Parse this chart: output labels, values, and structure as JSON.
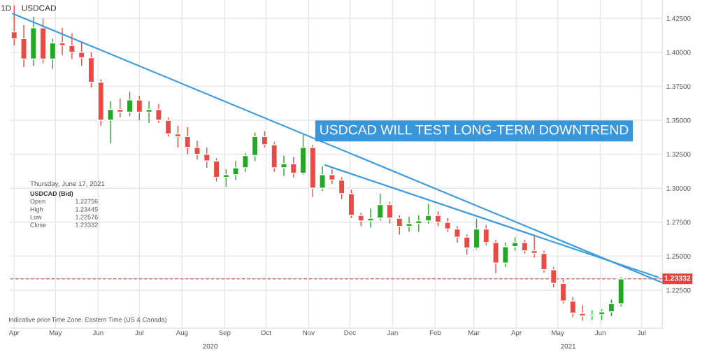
{
  "chart_data": {
    "type": "candlestick",
    "title": "USDCAD",
    "x": [
      "2020-04-01",
      "2020-04-08",
      "2020-04-15",
      "2020-04-22",
      "2020-04-29",
      "2020-05-06",
      "2020-05-13",
      "2020-05-20",
      "2020-05-27",
      "2020-06-03",
      "2020-06-10",
      "2020-06-17",
      "2020-06-24",
      "2020-07-01",
      "2020-07-08",
      "2020-07-15",
      "2020-07-22",
      "2020-07-29",
      "2020-08-05",
      "2020-08-12",
      "2020-08-19",
      "2020-08-26",
      "2020-09-02",
      "2020-09-09",
      "2020-09-16",
      "2020-09-23",
      "2020-09-30",
      "2020-10-07",
      "2020-10-14",
      "2020-10-21",
      "2020-10-28",
      "2020-11-04",
      "2020-11-11",
      "2020-11-18",
      "2020-11-25",
      "2020-12-02",
      "2020-12-09",
      "2020-12-16",
      "2020-12-23",
      "2020-12-30",
      "2021-01-06",
      "2021-01-13",
      "2021-01-20",
      "2021-01-27",
      "2021-02-03",
      "2021-02-10",
      "2021-02-17",
      "2021-02-24",
      "2021-03-03",
      "2021-03-10",
      "2021-03-17",
      "2021-03-24",
      "2021-03-31",
      "2021-04-07",
      "2021-04-14",
      "2021-04-21",
      "2021-04-28",
      "2021-05-05",
      "2021-05-12",
      "2021-05-19",
      "2021-05-26",
      "2021-06-02",
      "2021-06-09",
      "2021-06-16"
    ],
    "ohlc": [
      [
        1.415,
        1.4345,
        1.405,
        1.41
      ],
      [
        1.41,
        1.42,
        1.389,
        1.395
      ],
      [
        1.395,
        1.426,
        1.39,
        1.418
      ],
      [
        1.418,
        1.425,
        1.392,
        1.395
      ],
      [
        1.395,
        1.41,
        1.388,
        1.407
      ],
      [
        1.407,
        1.418,
        1.398,
        1.405
      ],
      [
        1.405,
        1.414,
        1.395,
        1.4
      ],
      [
        1.4,
        1.408,
        1.39,
        1.396
      ],
      [
        1.396,
        1.4,
        1.374,
        1.378
      ],
      [
        1.378,
        1.38,
        1.346,
        1.35
      ],
      [
        1.35,
        1.364,
        1.333,
        1.358
      ],
      [
        1.358,
        1.366,
        1.352,
        1.356
      ],
      [
        1.356,
        1.371,
        1.353,
        1.365
      ],
      [
        1.365,
        1.368,
        1.35,
        1.356
      ],
      [
        1.356,
        1.364,
        1.348,
        1.358
      ],
      [
        1.358,
        1.362,
        1.348,
        1.35
      ],
      [
        1.35,
        1.352,
        1.338,
        1.34
      ],
      [
        1.34,
        1.346,
        1.33,
        1.338
      ],
      [
        1.338,
        1.345,
        1.325,
        1.33
      ],
      [
        1.33,
        1.335,
        1.321,
        1.325
      ],
      [
        1.325,
        1.33,
        1.315,
        1.32
      ],
      [
        1.32,
        1.322,
        1.305,
        1.308
      ],
      [
        1.308,
        1.314,
        1.301,
        1.31
      ],
      [
        1.31,
        1.32,
        1.306,
        1.315
      ],
      [
        1.315,
        1.326,
        1.312,
        1.324
      ],
      [
        1.324,
        1.341,
        1.32,
        1.338
      ],
      [
        1.338,
        1.342,
        1.33,
        1.332
      ],
      [
        1.332,
        1.334,
        1.312,
        1.315
      ],
      [
        1.315,
        1.324,
        1.309,
        1.318
      ],
      [
        1.318,
        1.323,
        1.308,
        1.311
      ],
      [
        1.311,
        1.3395,
        1.31,
        1.33
      ],
      [
        1.33,
        1.332,
        1.2935,
        1.3
      ],
      [
        1.3,
        1.316,
        1.298,
        1.31
      ],
      [
        1.31,
        1.314,
        1.303,
        1.306
      ],
      [
        1.306,
        1.308,
        1.292,
        1.296
      ],
      [
        1.296,
        1.299,
        1.278,
        1.28
      ],
      [
        1.28,
        1.282,
        1.272,
        1.276
      ],
      [
        1.276,
        1.285,
        1.271,
        1.278
      ],
      [
        1.278,
        1.296,
        1.276,
        1.288
      ],
      [
        1.288,
        1.29,
        1.274,
        1.278
      ],
      [
        1.278,
        1.28,
        1.266,
        1.272
      ],
      [
        1.272,
        1.279,
        1.268,
        1.274
      ],
      [
        1.274,
        1.28,
        1.268,
        1.276
      ],
      [
        1.276,
        1.2885,
        1.274,
        1.28
      ],
      [
        1.28,
        1.283,
        1.272,
        1.275
      ],
      [
        1.275,
        1.278,
        1.268,
        1.27
      ],
      [
        1.27,
        1.272,
        1.26,
        1.264
      ],
      [
        1.264,
        1.266,
        1.251,
        1.256
      ],
      [
        1.256,
        1.2775,
        1.255,
        1.27
      ],
      [
        1.27,
        1.273,
        1.258,
        1.26
      ],
      [
        1.26,
        1.262,
        1.2375,
        1.245
      ],
      [
        1.245,
        1.26,
        1.242,
        1.257
      ],
      [
        1.257,
        1.264,
        1.254,
        1.26
      ],
      [
        1.26,
        1.262,
        1.252,
        1.254
      ],
      [
        1.254,
        1.266,
        1.249,
        1.252
      ],
      [
        1.252,
        1.254,
        1.238,
        1.24
      ],
      [
        1.24,
        1.242,
        1.227,
        1.23
      ],
      [
        1.23,
        1.233,
        1.215,
        1.217
      ],
      [
        1.217,
        1.22,
        1.205,
        1.208
      ],
      [
        1.208,
        1.214,
        1.2025,
        1.206
      ],
      [
        1.206,
        1.21,
        1.203,
        1.207
      ],
      [
        1.207,
        1.211,
        1.203,
        1.209
      ],
      [
        1.209,
        1.218,
        1.206,
        1.215
      ],
      [
        1.215,
        1.23445,
        1.213,
        1.23332
      ]
    ],
    "series": [
      {
        "type": "line",
        "color": "#3d9be0",
        "x": [
          "2020-03-31",
          "2021-07-16"
        ],
        "values": [
          1.4285,
          1.2305
        ]
      },
      {
        "type": "line",
        "color": "#3d9be0",
        "x": [
          "2020-11-13",
          "2021-07-13"
        ],
        "values": [
          1.317,
          1.2345
        ]
      }
    ],
    "xlim": [
      "2020-03-29",
      "2021-07-16"
    ],
    "xticks": [
      {
        "value": "2020-04-01",
        "label": "Apr"
      },
      {
        "value": "2020-05-01",
        "label": "May"
      },
      {
        "value": "2020-06-01",
        "label": "Jun"
      },
      {
        "value": "2020-07-01",
        "label": "Jul"
      },
      {
        "value": "2020-08-01",
        "label": "Aug"
      },
      {
        "value": "2020-09-01",
        "label": "Sep"
      },
      {
        "value": "2020-10-01",
        "label": "Oct"
      },
      {
        "value": "2020-11-01",
        "label": "Nov"
      },
      {
        "value": "2020-12-01",
        "label": "Dec"
      },
      {
        "value": "2021-01-01",
        "label": "Jan"
      },
      {
        "value": "2021-02-01",
        "label": "Feb"
      },
      {
        "value": "2021-03-01",
        "label": "Mar"
      },
      {
        "value": "2021-04-01",
        "label": "Apr"
      },
      {
        "value": "2021-05-01",
        "label": "May"
      },
      {
        "value": "2021-06-01",
        "label": "Jun"
      },
      {
        "value": "2021-07-01",
        "label": "Jul"
      }
    ],
    "ylim": [
      1.197,
      1.4385
    ],
    "yticks": [
      {
        "value": 1.225,
        "label": "1.22500"
      },
      {
        "value": 1.25,
        "label": "1.25000"
      },
      {
        "value": 1.275,
        "label": "1.27500"
      },
      {
        "value": 1.3,
        "label": "1.30000"
      },
      {
        "value": 1.325,
        "label": "1.32500"
      },
      {
        "value": 1.35,
        "label": "1.35000"
      },
      {
        "value": 1.375,
        "label": "1.37500"
      },
      {
        "value": 1.4,
        "label": "1.40000"
      },
      {
        "value": 1.425,
        "label": "1.42500"
      }
    ],
    "grid": true,
    "ref_lines": [
      {
        "axis": "y",
        "value": 1.23332,
        "label": "1.23332",
        "color": "#f07070",
        "line_style": "dashed"
      }
    ],
    "annotations": [
      "1D",
      "USDCAD WILL TEST LONG-TERM DOWNTREND",
      "Thursday, June 17, 2021",
      "USDCAD (Bid)",
      "Open",
      "1.22756",
      "High",
      "1.23445",
      "Low",
      "1.22576",
      "Close",
      "1.23332",
      "Indicative price",
      "Time Zone: Eastern Time (US & Canada)",
      "2020",
      "2021"
    ]
  }
}
